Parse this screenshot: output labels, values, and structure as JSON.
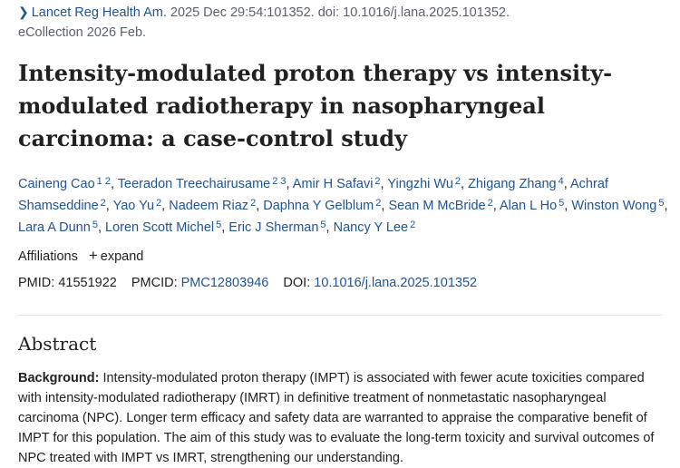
{
  "citation": {
    "journal": "Lancet Reg Health Am.",
    "details": " 2025 Dec 29:54:101352. doi: 10.1016/j.lana.2025.101352.",
    "ecollection": "eCollection 2026 Feb."
  },
  "title": "Intensity-modulated proton therapy vs intensity-modulated radiotherapy in nasopharyngeal carcinoma: a case-control study",
  "authors": [
    {
      "name": "Caineng Cao",
      "sup": "1 2"
    },
    {
      "name": "Teeradon Treechairusame",
      "sup": "2 3"
    },
    {
      "name": "Amir H Safavi",
      "sup": "2"
    },
    {
      "name": "Yingzhi Wu",
      "sup": "2"
    },
    {
      "name": "Zhigang Zhang",
      "sup": "4"
    },
    {
      "name": "Achraf Shamseddine",
      "sup": "2"
    },
    {
      "name": "Yao Yu",
      "sup": "2"
    },
    {
      "name": "Nadeem Riaz",
      "sup": "2"
    },
    {
      "name": "Daphna Y Gelblum",
      "sup": "2"
    },
    {
      "name": "Sean M McBride",
      "sup": "2"
    },
    {
      "name": "Alan L Ho",
      "sup": "5"
    },
    {
      "name": "Winston Wong",
      "sup": "5"
    },
    {
      "name": "Lara A Dunn",
      "sup": "5"
    },
    {
      "name": "Loren Scott Michel",
      "sup": "5"
    },
    {
      "name": "Eric J Sherman",
      "sup": "5"
    },
    {
      "name": "Nancy Y Lee",
      "sup": "2"
    }
  ],
  "affiliations": {
    "label": "Affiliations",
    "expand": "expand"
  },
  "ids": {
    "pmid_label": "PMID:",
    "pmid": "41551922",
    "pmcid_label": "PMCID:",
    "pmcid": "PMC12803946",
    "doi_label": "DOI:",
    "doi": "10.1016/j.lana.2025.101352"
  },
  "abstract": {
    "heading": "Abstract",
    "background_label": "Background:",
    "background_text": " Intensity-modulated proton therapy (IMPT) is associated with fewer acute toxicities compared with intensity-modulated radiotherapy (IMRT) in definitive treatment of nonmetastatic nasopharyngeal carcinoma (NPC). Longer term efficacy and safety data are warranted to appraise the comparative benefit of IMPT for this population. The aim of this study was to evaluate the long-term toxicity and survival outcomes of NPC treated with IMPT vs IMRT, strengthening our understanding."
  }
}
